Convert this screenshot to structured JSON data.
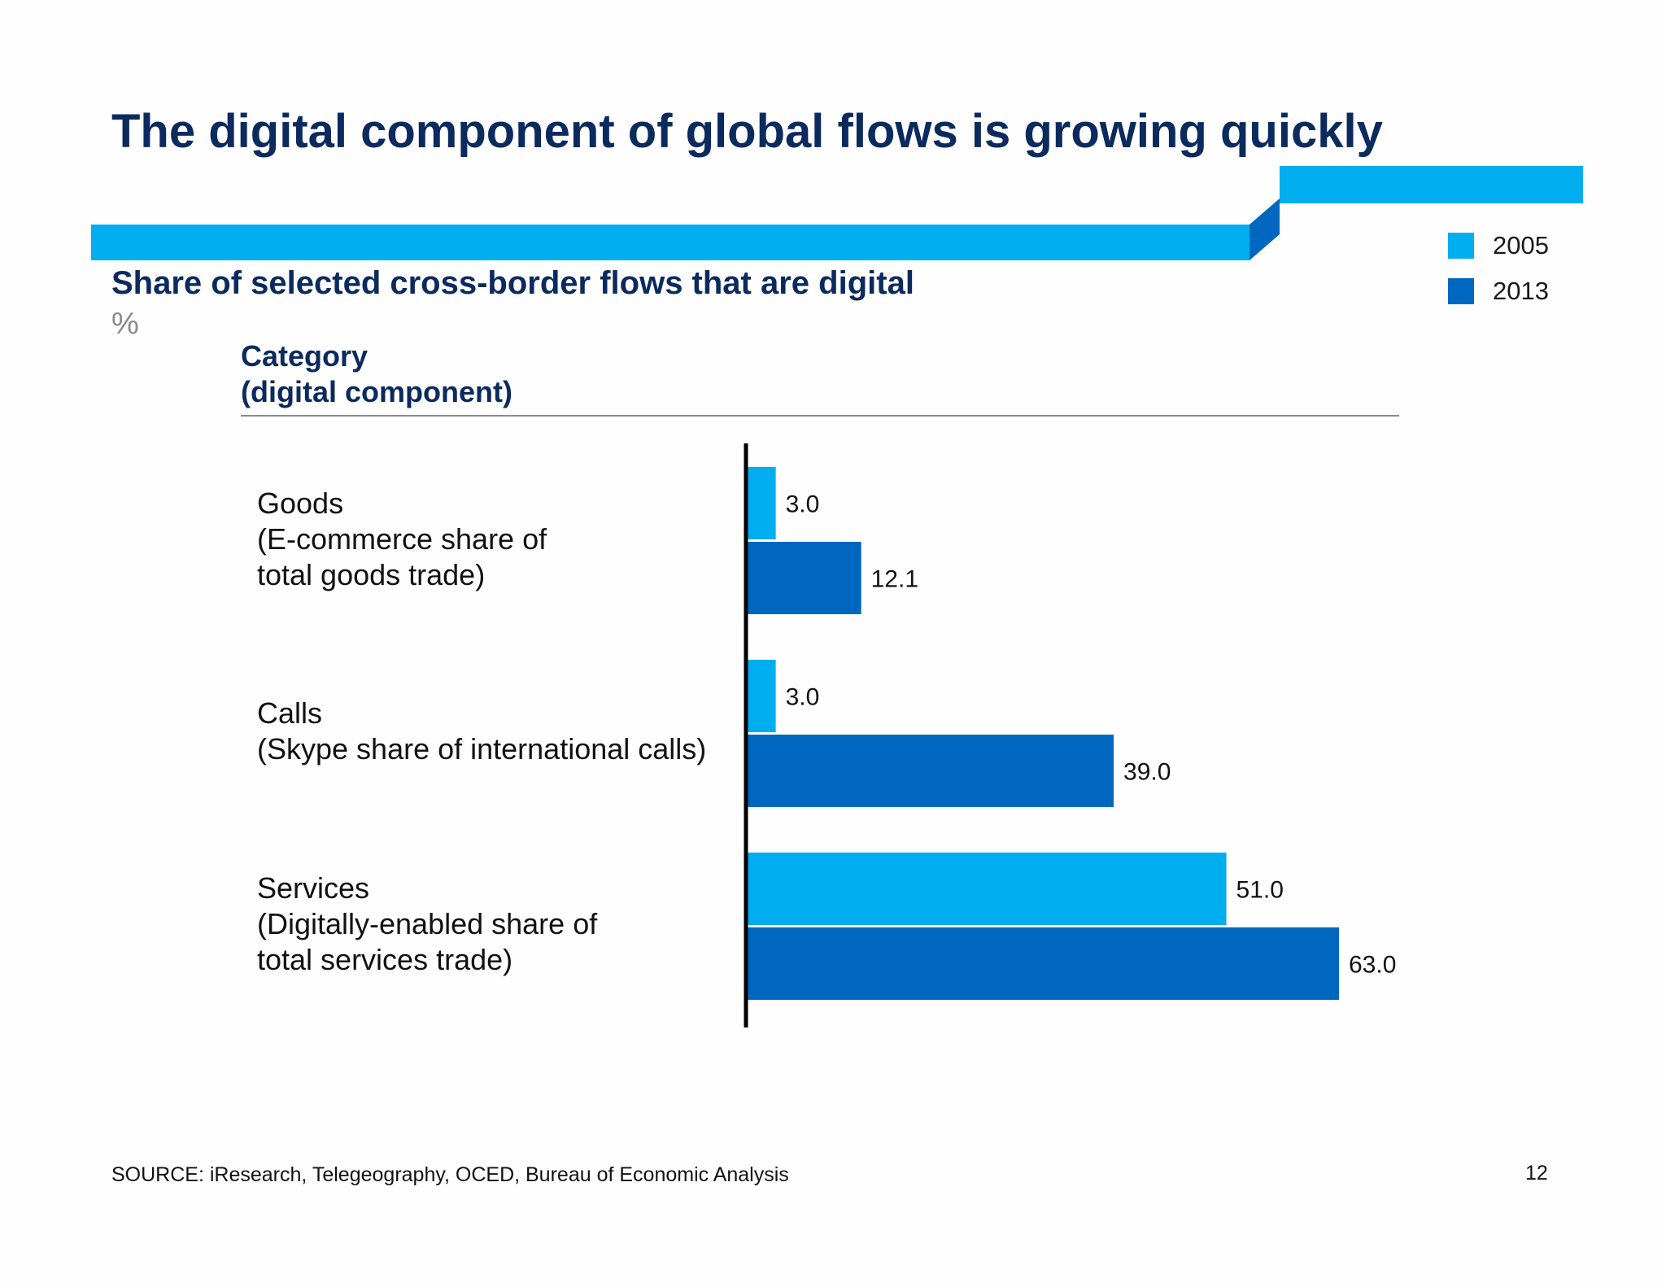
{
  "slide": {
    "title": "The digital component of global flows is growing quickly",
    "subtitle": "Share of selected cross-border flows that are digital",
    "unit": "%",
    "category_header_line1": "Category",
    "category_header_line2": "(digital component)",
    "source": "SOURCE: iResearch, Telegeography, OCED, Bureau of Economic Analysis",
    "page_number": "12"
  },
  "colors": {
    "banner": "#00adef",
    "banner_fold": "#0067c0",
    "title": "#0b2a5e",
    "series_2005": "#00adef",
    "series_2013": "#0067c0"
  },
  "chart_data": {
    "type": "bar",
    "orientation": "horizontal",
    "categories": [
      {
        "name": "Goods",
        "lines": [
          "Goods",
          "(E-commerce share of",
          "total goods trade)"
        ]
      },
      {
        "name": "Calls",
        "lines": [
          "Calls",
          "(Skype share of international calls)"
        ]
      },
      {
        "name": "Services",
        "lines": [
          "Services",
          "(Digitally-enabled share of",
          "total services trade)"
        ]
      }
    ],
    "series": [
      {
        "name": "2005",
        "color": "#00adef",
        "values": [
          3.0,
          3.0,
          51.0
        ],
        "labels": [
          "3.0",
          "3.0",
          "51.0"
        ]
      },
      {
        "name": "2013",
        "color": "#0067c0",
        "values": [
          12.1,
          39.0,
          63.0
        ],
        "labels": [
          "12.1",
          "39.0",
          "63.0"
        ]
      }
    ],
    "xlim": [
      0,
      63.0
    ],
    "grid": false,
    "legend": "top-right",
    "title": "Share of selected cross-border flows that are digital",
    "xlabel": "",
    "ylabel": ""
  }
}
